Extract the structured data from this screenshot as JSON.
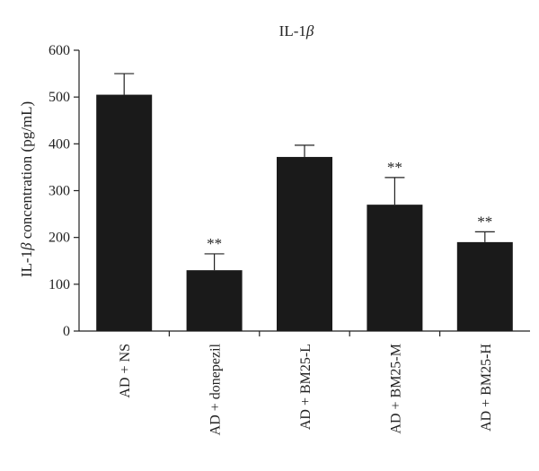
{
  "chart_data": {
    "type": "bar",
    "title_prefix": "IL-1",
    "title_greek": "β",
    "ylabel_prefix": "IL-1",
    "ylabel_greek": "β",
    "ylabel_suffix": " concentration (pg/mL)",
    "xlabel": "",
    "categories": [
      "AD + NS",
      "AD + donepezil",
      "AD + BM25-L",
      "AD + BM25-M",
      "AD + BM25-H"
    ],
    "values": [
      505,
      130,
      372,
      270,
      190
    ],
    "error_plus": [
      45,
      35,
      25,
      58,
      22
    ],
    "significance": [
      "",
      "**",
      "",
      "**",
      "**"
    ],
    "ylim": [
      0,
      600
    ],
    "yticks": [
      0,
      100,
      200,
      300,
      400,
      500,
      600
    ],
    "bar_color": "#1a1a1a",
    "grid": false,
    "legend": "none"
  }
}
